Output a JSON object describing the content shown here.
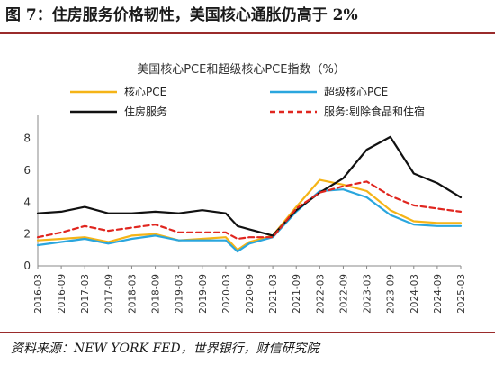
{
  "figure": {
    "title": "图 7：住房服务价格韧性，美国核心通胀仍高于 2%",
    "source": "资料来源：NEW YORK FED，世界银行，财信研究院"
  },
  "chart_data": {
    "type": "line",
    "title": "美国核心PCE和超级核心PCE指数（%）",
    "xlabel": "",
    "ylabel": "",
    "ylim": [
      0,
      9
    ],
    "yticks": [
      "0",
      "2",
      "4",
      "6",
      "8"
    ],
    "x_tick_labels": [
      "2016-03",
      "2016-09",
      "2017-03",
      "2017-09",
      "2018-03",
      "2018-09",
      "2019-03",
      "2019-09",
      "2020-03",
      "2020-09",
      "2021-03",
      "2021-09",
      "2022-03",
      "2022-09",
      "2023-03",
      "2023-09",
      "2024-03",
      "2024-09",
      "2025-03"
    ],
    "x": [
      "2016-03",
      "2016-09",
      "2017-03",
      "2017-09",
      "2018-03",
      "2018-09",
      "2019-03",
      "2019-09",
      "2020-03",
      "2020-06",
      "2020-09",
      "2021-03",
      "2021-09",
      "2022-03",
      "2022-09",
      "2023-03",
      "2023-09",
      "2024-03",
      "2024-09",
      "2025-03"
    ],
    "grid": false,
    "legend": "top",
    "series": [
      {
        "name": "核心PCE",
        "color": "#f5b417",
        "style": "solid",
        "values": [
          1.6,
          1.7,
          1.8,
          1.5,
          1.9,
          2.0,
          1.6,
          1.7,
          1.8,
          1.0,
          1.5,
          1.9,
          3.7,
          5.4,
          5.1,
          4.7,
          3.5,
          2.8,
          2.7,
          2.7
        ]
      },
      {
        "name": "超级核心PCE",
        "color": "#2aa6de",
        "style": "solid",
        "values": [
          1.3,
          1.5,
          1.7,
          1.4,
          1.7,
          1.9,
          1.6,
          1.6,
          1.6,
          0.9,
          1.4,
          1.8,
          3.4,
          4.7,
          4.8,
          4.3,
          3.2,
          2.6,
          2.5,
          2.5
        ]
      },
      {
        "name": "住房服务",
        "color": "#111111",
        "style": "solid",
        "values": [
          3.3,
          3.4,
          3.7,
          3.3,
          3.3,
          3.4,
          3.3,
          3.5,
          3.3,
          2.5,
          2.3,
          1.9,
          3.5,
          4.6,
          5.5,
          7.3,
          8.1,
          5.8,
          5.2,
          4.3
        ]
      },
      {
        "name": "服务:剔除食品和住宿",
        "color": "#e0261f",
        "style": "dashed",
        "values": [
          1.8,
          2.1,
          2.5,
          2.2,
          2.4,
          2.6,
          2.1,
          2.1,
          2.1,
          1.7,
          1.8,
          1.8,
          3.6,
          4.6,
          5.0,
          5.3,
          4.4,
          3.8,
          3.6,
          3.4
        ]
      }
    ]
  }
}
